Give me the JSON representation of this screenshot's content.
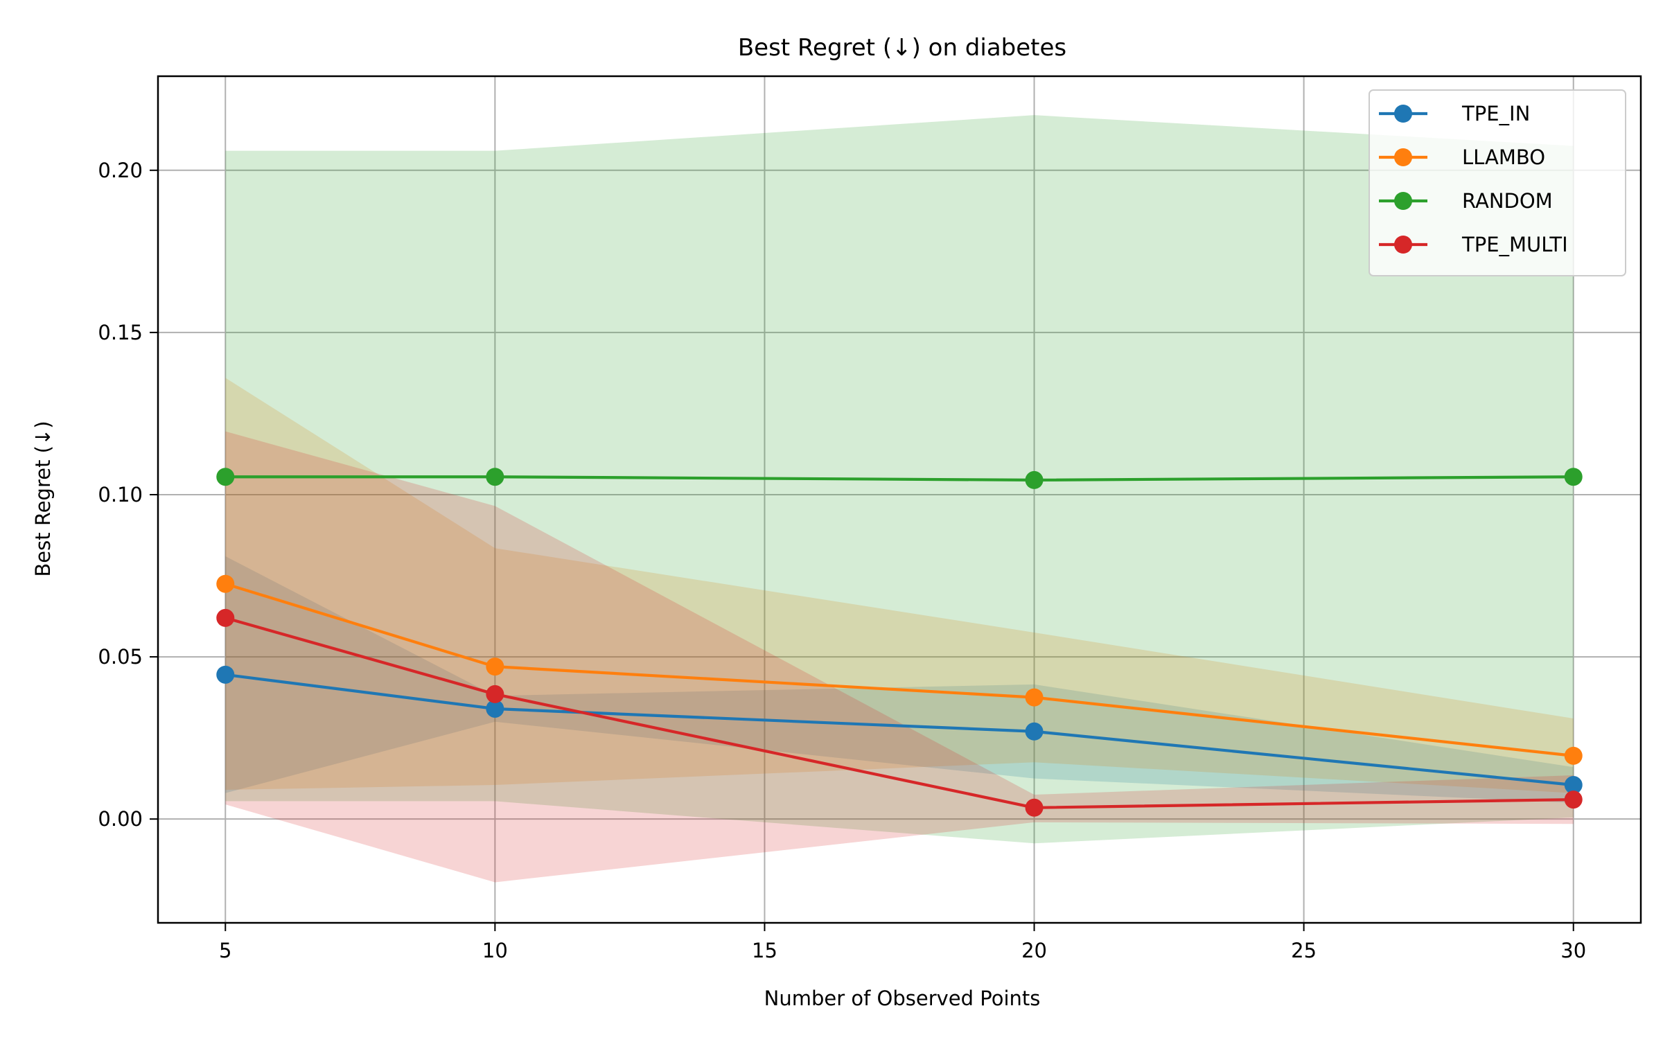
{
  "chart_data": {
    "type": "line",
    "title": "Best Regret (↓) on diabetes",
    "xlabel": "Number of Observed Points",
    "ylabel": "Best Regret (↓)",
    "xlim": [
      3.75,
      31.25
    ],
    "ylim": [
      -0.032,
      0.229
    ],
    "xticks": [
      5,
      10,
      15,
      20,
      25,
      30
    ],
    "xtick_labels": [
      "5",
      "10",
      "15",
      "20",
      "25",
      "30"
    ],
    "yticks": [
      0.0,
      0.05,
      0.1,
      0.15,
      0.2
    ],
    "ytick_labels": [
      "0.00",
      "0.05",
      "0.10",
      "0.15",
      "0.20"
    ],
    "grid": true,
    "legend_position": "upper right",
    "x": [
      5,
      10,
      20,
      30
    ],
    "series": [
      {
        "name": "TPE_IN",
        "color": "#1f77b4",
        "values": [
          0.0445,
          0.034,
          0.027,
          0.0105
        ],
        "lower": [
          0.008,
          0.03,
          0.0125,
          0.005
        ],
        "upper": [
          0.081,
          0.038,
          0.0415,
          0.016
        ]
      },
      {
        "name": "LLAMBO",
        "color": "#ff7f0e",
        "values": [
          0.0725,
          0.047,
          0.0375,
          0.0195
        ],
        "lower": [
          0.009,
          0.0105,
          0.0175,
          0.008
        ],
        "upper": [
          0.136,
          0.0835,
          0.0575,
          0.031
        ]
      },
      {
        "name": "RANDOM",
        "color": "#2ca02c",
        "values": [
          0.1055,
          0.1055,
          0.1045,
          0.1055
        ],
        "lower": [
          0.0055,
          0.0055,
          -0.0075,
          0.0005
        ],
        "upper": [
          0.206,
          0.206,
          0.217,
          0.2075
        ]
      },
      {
        "name": "TPE_MULTI",
        "color": "#d62728",
        "values": [
          0.062,
          0.0385,
          0.0035,
          0.006
        ],
        "lower": [
          0.0045,
          -0.0195,
          -0.001,
          -0.0015
        ],
        "upper": [
          0.1195,
          0.0965,
          0.0075,
          0.0135
        ]
      }
    ]
  }
}
